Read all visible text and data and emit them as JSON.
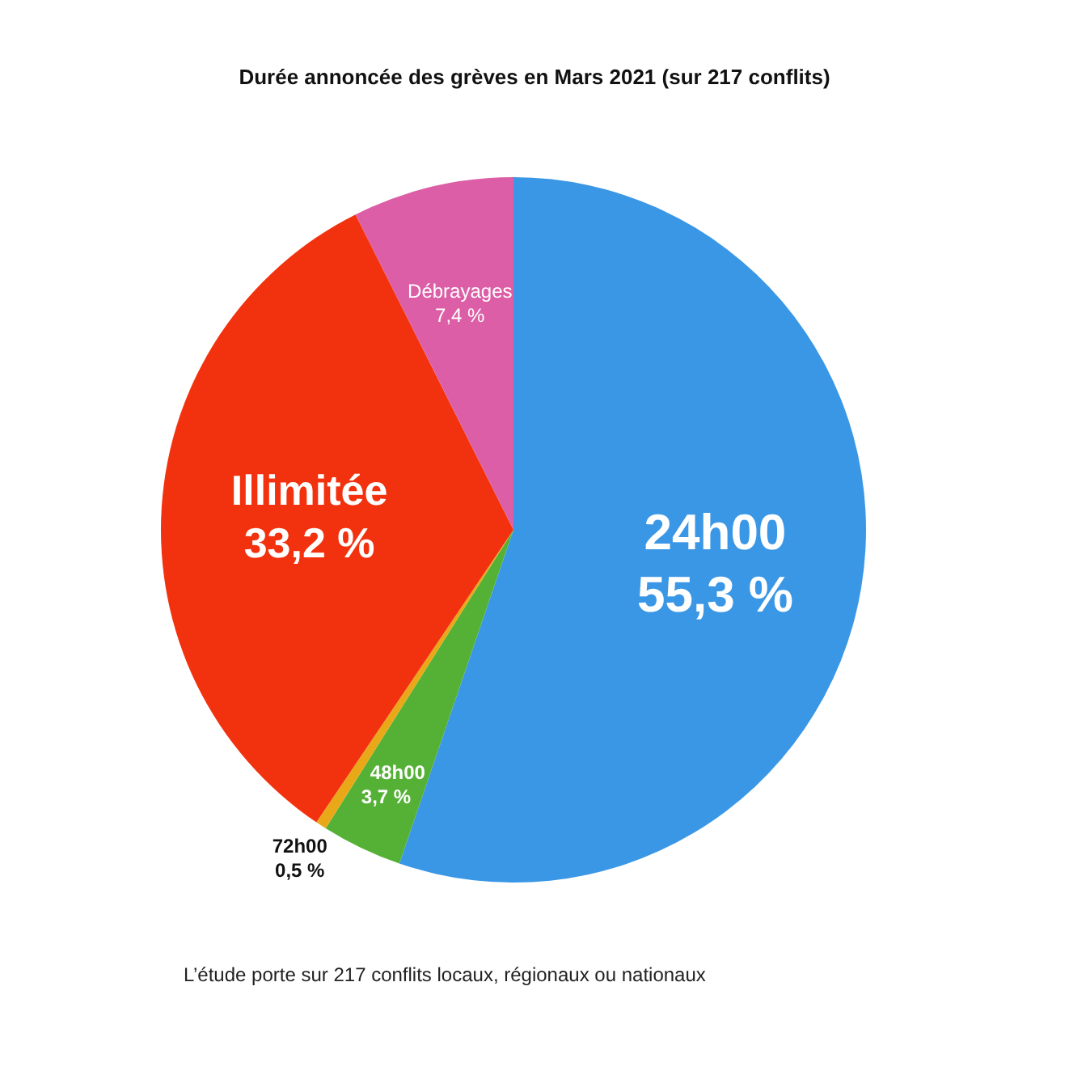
{
  "chart_data": {
    "type": "pie",
    "title": "Durée annoncée des grèves en Mars 2021 (sur 217 conflits)",
    "categories": [
      "24h00",
      "48h00",
      "72h00",
      "Illimitée",
      "Débrayages"
    ],
    "values": [
      55.3,
      3.7,
      0.5,
      33.2,
      7.4
    ],
    "colors": [
      "#3a97e6",
      "#55b136",
      "#e8a818",
      "#f2320e",
      "#dc5ea6"
    ],
    "value_labels": [
      "55,3 %",
      "3,7 %",
      "0,5 %",
      "33,2 %",
      "7,4 %"
    ],
    "annotations": [
      "L’étude porte sur 217 conflits locaux, régionaux ou nationaux"
    ]
  }
}
